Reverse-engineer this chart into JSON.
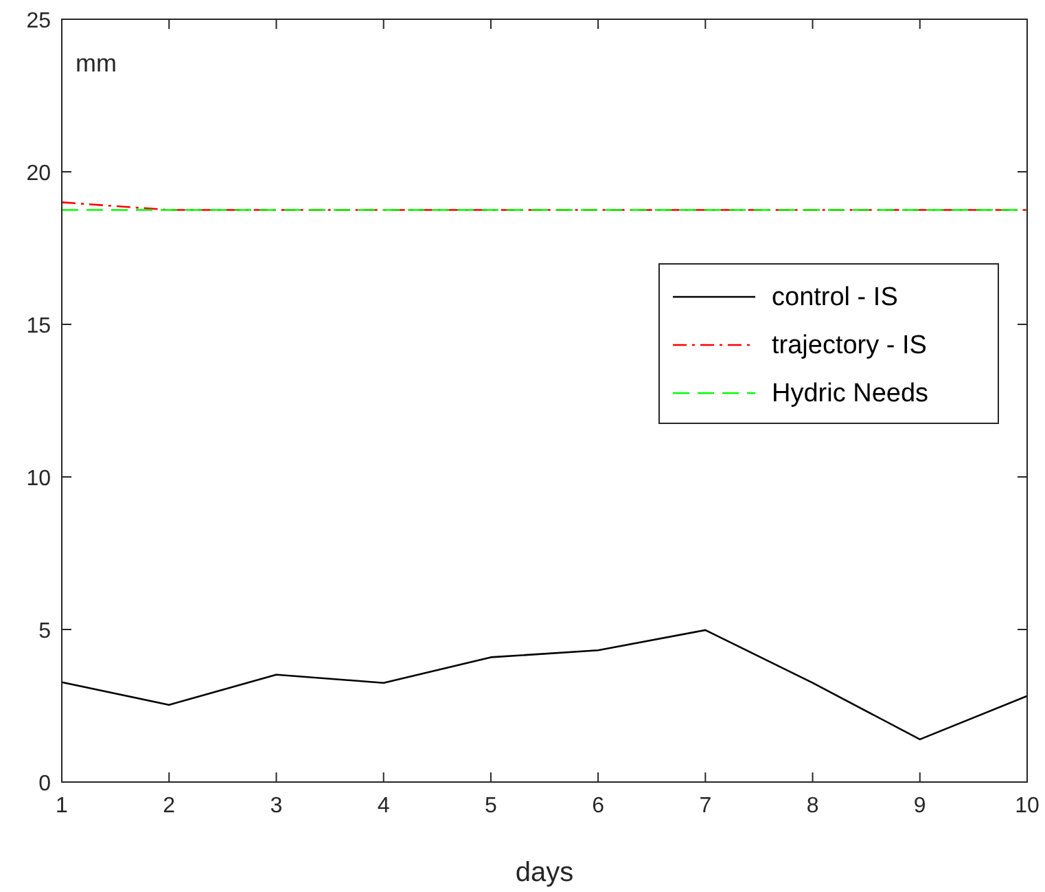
{
  "chart_data": {
    "type": "line",
    "xlabel": "days",
    "ylabel": "mm",
    "x": [
      1,
      2,
      3,
      4,
      5,
      6,
      7,
      8,
      9,
      10
    ],
    "series": [
      {
        "name": "control - IS",
        "color": "#000000",
        "line_style": "solid",
        "values": [
          3.27,
          2.53,
          3.52,
          3.25,
          4.09,
          4.32,
          4.98,
          3.25,
          1.4,
          2.82
        ]
      },
      {
        "name": "trajectory - IS",
        "color": "#ff0000",
        "line_style": "dashdot",
        "values": [
          19.0,
          18.75,
          18.75,
          18.75,
          18.75,
          18.75,
          18.75,
          18.75,
          18.75,
          18.75
        ]
      },
      {
        "name": "Hydric Needs",
        "color": "#00ff00",
        "line_style": "dashed",
        "values": [
          18.75,
          18.75,
          18.75,
          18.75,
          18.75,
          18.75,
          18.75,
          18.75,
          18.75,
          18.75
        ]
      }
    ],
    "xlim": [
      1,
      10
    ],
    "ylim": [
      0,
      25
    ],
    "xticks": [
      1,
      2,
      3,
      4,
      5,
      6,
      7,
      8,
      9,
      10
    ],
    "yticks": [
      0,
      5,
      10,
      15,
      20,
      25
    ],
    "grid": false,
    "legend": "right",
    "marker": "none"
  }
}
